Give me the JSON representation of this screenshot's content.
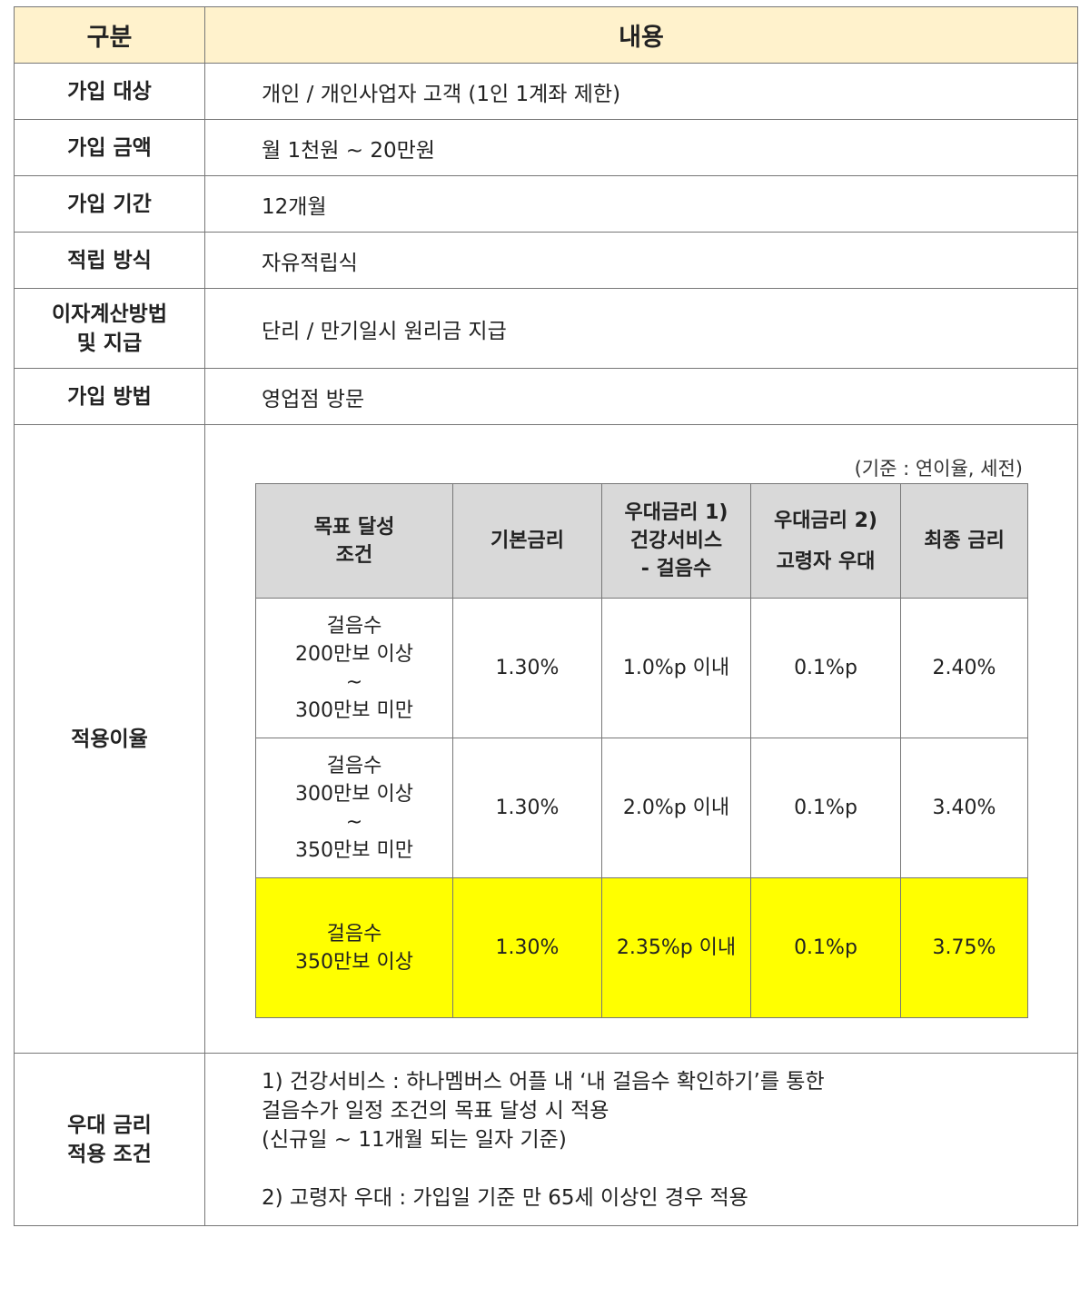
{
  "header": {
    "col1": "구분",
    "col2": "내용"
  },
  "rows": [
    {
      "label": "가입 대상",
      "value": "개인 / 개인사업자 고객 (1인 1계좌 제한)"
    },
    {
      "label": "가입 금액",
      "value": "월 1천원 ~ 20만원"
    },
    {
      "label": "가입 기간",
      "value": "12개월"
    },
    {
      "label": "적립 방식",
      "value": "자유적립식"
    },
    {
      "label_line1": "이자계산방법",
      "label_line2": "및 지급",
      "value": "단리 / 만기일시 원리금 지급"
    },
    {
      "label": "가입 방법",
      "value": "영업점 방문"
    }
  ],
  "rates": {
    "label": "적용이율",
    "basis": "(기준 : 연이율, 세전)",
    "headers": {
      "goal": [
        "목표 달성",
        "조건"
      ],
      "base": "기본금리",
      "pref1": [
        "우대금리 1)",
        "건강서비스",
        "- 걸음수"
      ],
      "pref2": [
        "우대금리 2)",
        "고령자 우대"
      ],
      "final": "최종 금리"
    },
    "rows": [
      {
        "goal": [
          "걸음수",
          "200만보 이상",
          "~",
          "300만보 미만"
        ],
        "base": "1.30%",
        "pref1": "1.0%p 이내",
        "pref2": "0.1%p",
        "final": "2.40%"
      },
      {
        "goal": [
          "걸음수",
          "300만보 이상",
          "~",
          "350만보 미만"
        ],
        "base": "1.30%",
        "pref1": "2.0%p 이내",
        "pref2": "0.1%p",
        "final": "3.40%"
      },
      {
        "goal": [
          "걸음수",
          "350만보 이상"
        ],
        "base": "1.30%",
        "pref1": "2.35%p 이내",
        "pref2": "0.1%p",
        "final": "3.75%"
      }
    ],
    "highlight_color": "#ffff00",
    "header_bg": "#d9d9d9"
  },
  "conditions": {
    "label_line1": "우대 금리",
    "label_line2": "적용 조건",
    "note1_line1": "1)   건강서비스 : 하나멤버스 어플 내 ‘내 걸음수 확인하기’를 통한",
    "note1_line2": "걸음수가 일정 조건의 목표 달성 시 적용",
    "note1_line3": "(신규일 ~ 11개월 되는 일자 기준)",
    "note2": "2)  고령자 우대 : 가입일 기준 만 65세 이상인 경우 적용"
  },
  "colors": {
    "header_bg": "#fff2cc",
    "border": "#777777"
  }
}
